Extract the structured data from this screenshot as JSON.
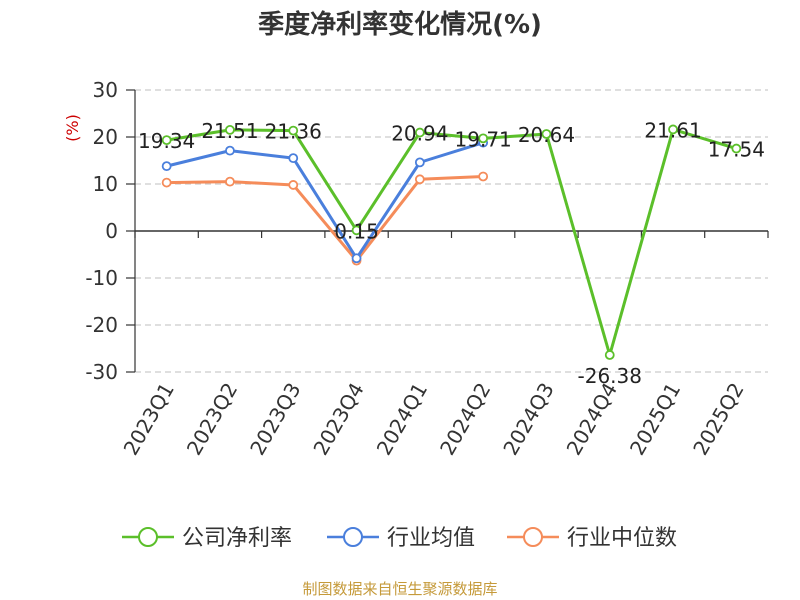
{
  "chart_data": {
    "type": "line",
    "title": "季度净利率变化情况(%)",
    "ylabel": "(%)",
    "xlabel": "",
    "categories": [
      "2023Q1",
      "2023Q2",
      "2023Q3",
      "2023Q4",
      "2024Q1",
      "2024Q2",
      "2024Q3",
      "2024Q4",
      "2025Q1",
      "2025Q2"
    ],
    "ylim": [
      -30,
      30
    ],
    "yticks": [
      30,
      20,
      10,
      0,
      -10,
      -20,
      -30
    ],
    "grid": true,
    "legend_position": "bottom",
    "series": [
      {
        "name": "公司净利率",
        "color": "#5bbf2a",
        "values": [
          19.34,
          21.51,
          21.36,
          0.15,
          20.94,
          19.71,
          20.64,
          -26.38,
          21.61,
          17.54
        ],
        "data_labels": [
          "19.34",
          "21.51",
          "21.36",
          "0.15",
          "20.94",
          "19.71",
          "20.64",
          "-26.38",
          "21.61",
          "17.54"
        ]
      },
      {
        "name": "行业均值",
        "color": "#4a7fdc",
        "values": [
          13.8,
          17.1,
          15.5,
          -5.8,
          14.6,
          18.8,
          null,
          null,
          null,
          null
        ]
      },
      {
        "name": "行业中位数",
        "color": "#f58c5a",
        "values": [
          10.3,
          10.5,
          9.8,
          -6.3,
          11.0,
          11.6,
          null,
          null,
          null,
          null
        ]
      }
    ]
  },
  "source_note": "制图数据来自恒生聚源数据库"
}
